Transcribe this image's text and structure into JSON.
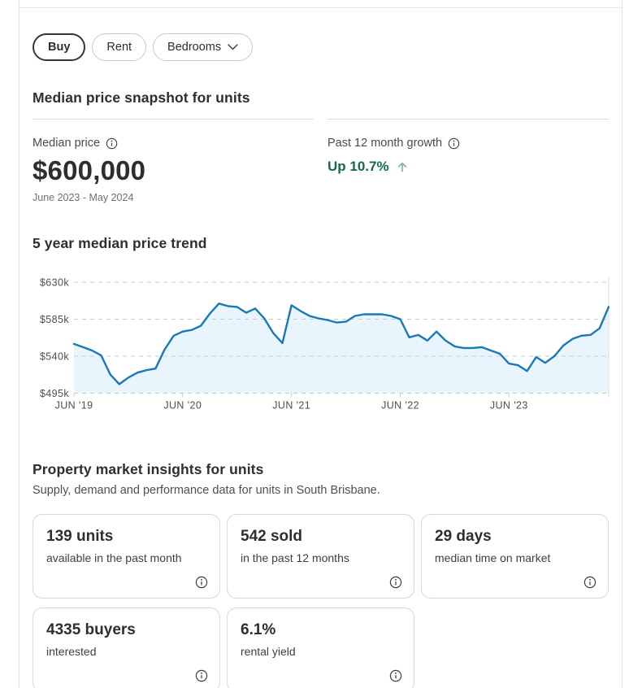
{
  "filters": {
    "buy_label": "Buy",
    "rent_label": "Rent",
    "bedrooms_label": "Bedrooms"
  },
  "snapshot": {
    "title": "Median price snapshot for units",
    "median_price": {
      "label": "Median price",
      "value": "$600,000",
      "period": "June 2023 - May 2024"
    },
    "growth": {
      "label": "Past 12 month growth",
      "value": "Up 10.7%",
      "color": "#15694f",
      "arrow_color": "#85b9a4"
    }
  },
  "trend": {
    "title": "5 year median price trend"
  },
  "chart_data": {
    "type": "area",
    "title": "5 year median price trend",
    "x_start": "Jun 2019",
    "x_end": "May 2024",
    "x_interval": "monthly",
    "x_tick_labels": [
      "JUN '19",
      "JUN '20",
      "JUN '21",
      "JUN '22",
      "JUN '23"
    ],
    "x_tick_indices": [
      0,
      12,
      24,
      36,
      48
    ],
    "y_tick_labels": [
      "$630k",
      "$585k",
      "$540k",
      "$495k"
    ],
    "y_tick_values": [
      630,
      585,
      540,
      495
    ],
    "ylim": [
      495,
      637
    ],
    "y_unit": "thousand dollars",
    "grid": "dashed horizontal",
    "legend": "none",
    "line_color": "#1878b8",
    "fill_color": "#e8f5fc",
    "grid_color": "#cbcbcb",
    "values": [
      555,
      551,
      547,
      541,
      518,
      506,
      514,
      520,
      523,
      525,
      548,
      565,
      570,
      572,
      577,
      592,
      604,
      601,
      600,
      593,
      598,
      586,
      568,
      556,
      602,
      595,
      589,
      586,
      584,
      581,
      582,
      589,
      591,
      591,
      591,
      589,
      585,
      563,
      566,
      559,
      570,
      559,
      552,
      550,
      550,
      551,
      547,
      543,
      531,
      529,
      522,
      539,
      532,
      540,
      553,
      561,
      565,
      566,
      574,
      600
    ]
  },
  "insights": {
    "title": "Property market insights for units",
    "subtitle": "Supply, demand and performance data for units in South Brisbane.",
    "cards": [
      {
        "value": "139 units",
        "caption": "available in the past month"
      },
      {
        "value": "542 sold",
        "caption": "in the past 12 months"
      },
      {
        "value": "29 days",
        "caption": "median time on market"
      },
      {
        "value": "4335 buyers",
        "caption": "interested"
      },
      {
        "value": "6.1%",
        "caption": "rental yield"
      }
    ]
  }
}
